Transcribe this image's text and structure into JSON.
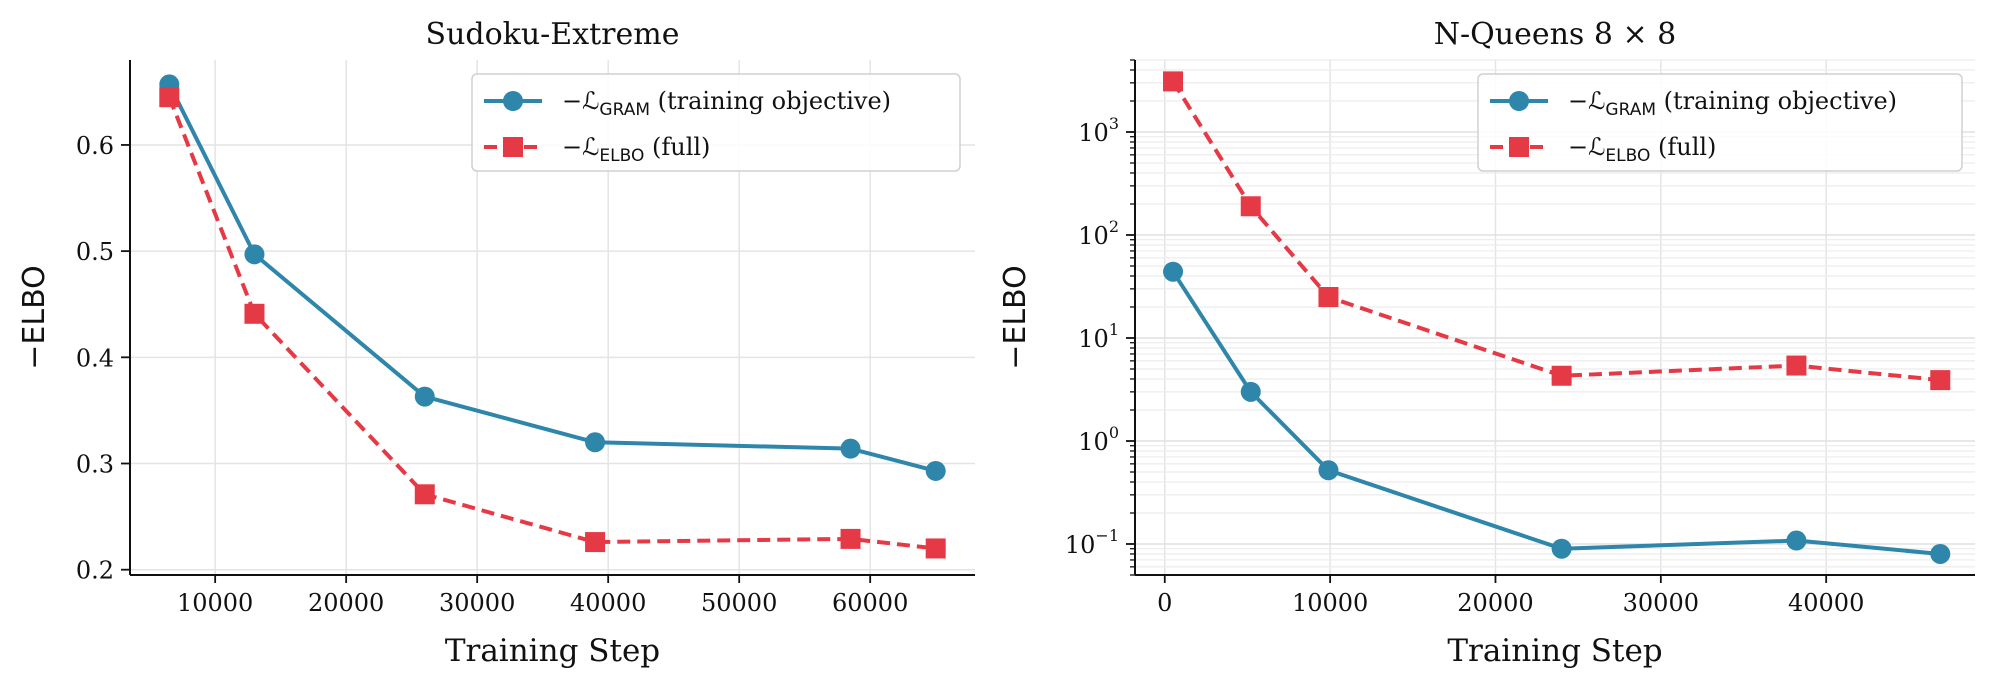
{
  "chart_data": [
    {
      "type": "line",
      "title": "Sudoku-Extreme",
      "xlabel": "Training Step",
      "ylabel": "−ELBO",
      "xlim": [
        3500,
        68000
      ],
      "ylim": [
        0.195,
        0.68
      ],
      "yscale": "linear",
      "xticks": [
        10000,
        20000,
        30000,
        40000,
        50000,
        60000
      ],
      "xtick_labels": [
        "10000",
        "20000",
        "30000",
        "40000",
        "50000",
        "60000"
      ],
      "yticks": [
        0.2,
        0.3,
        0.4,
        0.5,
        0.6
      ],
      "ytick_labels": [
        "0.2",
        "0.3",
        "0.4",
        "0.5",
        "0.6"
      ],
      "grid": true,
      "legend_position": "top-right",
      "series": [
        {
          "name": "−ℒGRAM (training objective)",
          "legend_main": "−ℒ",
          "legend_sub": "GRAM",
          "legend_rest": " (training objective)",
          "color": "#2e86ab",
          "marker": "circle",
          "dash": "solid",
          "x": [
            6500,
            13000,
            26000,
            39000,
            58500,
            65000
          ],
          "y": [
            0.657,
            0.497,
            0.363,
            0.32,
            0.314,
            0.293
          ]
        },
        {
          "name": "−ℒELBO (full)",
          "legend_main": "−ℒ",
          "legend_sub": "ELBO",
          "legend_rest": " (full)",
          "color": "#e63946",
          "marker": "square",
          "dash": "dashed",
          "x": [
            6500,
            13000,
            26000,
            39000,
            58500,
            65000
          ],
          "y": [
            0.645,
            0.441,
            0.271,
            0.226,
            0.229,
            0.22
          ]
        }
      ]
    },
    {
      "type": "line",
      "title": "N-Queens 8 × 8",
      "xlabel": "Training Step",
      "ylabel": "−ELBO",
      "xlim": [
        -1800,
        49000
      ],
      "ylim": [
        0.05,
        5000
      ],
      "yscale": "log",
      "xticks": [
        0,
        10000,
        20000,
        30000,
        40000
      ],
      "xtick_labels": [
        "0",
        "10000",
        "20000",
        "30000",
        "40000"
      ],
      "yticks": [
        0.1,
        1,
        10,
        100,
        1000
      ],
      "ytick_labels": [
        {
          "base": "10",
          "exp": "−1"
        },
        {
          "base": "10",
          "exp": "0"
        },
        {
          "base": "10",
          "exp": "1"
        },
        {
          "base": "10",
          "exp": "2"
        },
        {
          "base": "10",
          "exp": "3"
        }
      ],
      "grid": true,
      "legend_position": "top-right",
      "series": [
        {
          "name": "−ℒGRAM (training objective)",
          "legend_main": "−ℒ",
          "legend_sub": "GRAM",
          "legend_rest": " (training objective)",
          "color": "#2e86ab",
          "marker": "circle",
          "dash": "solid",
          "x": [
            500,
            5200,
            9900,
            24000,
            38200,
            46900
          ],
          "y": [
            44,
            3.0,
            0.52,
            0.09,
            0.108,
            0.08
          ]
        },
        {
          "name": "−ℒELBO (full)",
          "legend_main": "−ℒ",
          "legend_sub": "ELBO",
          "legend_rest": " (full)",
          "color": "#e63946",
          "marker": "square",
          "dash": "dashed",
          "x": [
            500,
            5200,
            9900,
            24000,
            38200,
            46900
          ],
          "y": [
            3100,
            190,
            25,
            4.3,
            5.4,
            3.9
          ]
        }
      ]
    }
  ]
}
